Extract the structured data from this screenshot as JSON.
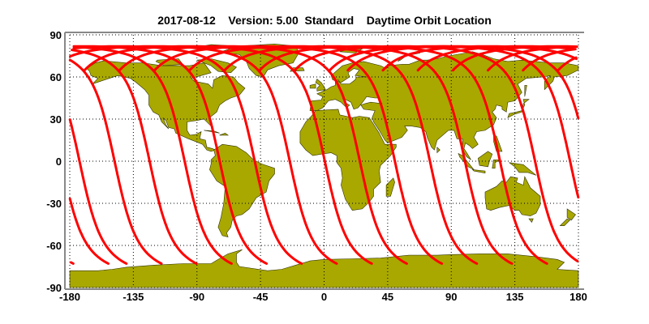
{
  "title": "2017-08-12    Version: 5.00  Standard    Daytime Orbit Location",
  "map": {
    "projection": "equirectangular",
    "lon_range": [
      -180,
      180
    ],
    "lat_range": [
      -90,
      90
    ],
    "x_ticks": [
      "-180",
      "-135",
      "-90",
      "-45",
      "0",
      "45",
      "90",
      "135",
      "180"
    ],
    "y_ticks": [
      "90",
      "60",
      "30",
      "0",
      "-30",
      "-60",
      "-90"
    ],
    "grid": "dotted",
    "land_color": "#a8a800",
    "coast_color": "#333300",
    "track_color": "#ff0000",
    "frame_color": "#888888"
  }
}
